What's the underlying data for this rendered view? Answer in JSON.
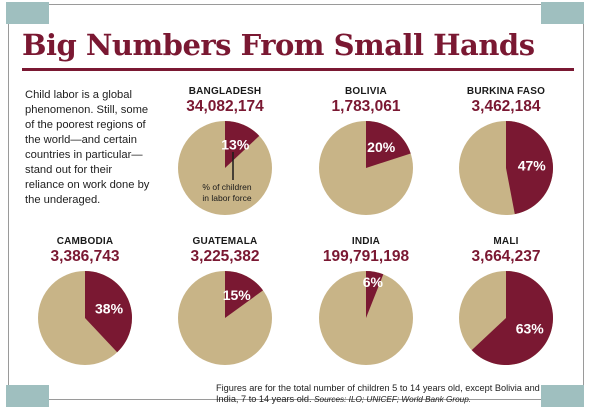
{
  "title": "Big Numbers From Small Hands",
  "intro": "Child labor is a global phenomenon. Still, some of the poorest regions of the world—and certain countries in particular—stand out for their reliance on work done by the underaged.",
  "footnote": {
    "text": "Figures are for the total number of children 5 to 14 years old, except Bolivia and India, 7 to 14 years old.",
    "sources": "Sources: ILO; UNICEF; World Bank Group."
  },
  "annotation": "% of children in labor force",
  "colors": {
    "accent": "#7a1832",
    "base": "#c8b487",
    "frame_corner": "#9fbfbf"
  },
  "chart_data": [
    {
      "type": "pie",
      "title": "BANGLADESH",
      "subtitle": "34,082,174",
      "values": [
        13,
        87
      ],
      "labels": [
        "13%",
        ""
      ]
    },
    {
      "type": "pie",
      "title": "BOLIVIA",
      "subtitle": "1,783,061",
      "values": [
        20,
        80
      ],
      "labels": [
        "20%",
        ""
      ]
    },
    {
      "type": "pie",
      "title": "BURKINA FASO",
      "subtitle": "3,462,184",
      "values": [
        47,
        53
      ],
      "labels": [
        "47%",
        ""
      ]
    },
    {
      "type": "pie",
      "title": "CAMBODIA",
      "subtitle": "3,386,743",
      "values": [
        38,
        62
      ],
      "labels": [
        "38%",
        ""
      ]
    },
    {
      "type": "pie",
      "title": "GUATEMALA",
      "subtitle": "3,225,382",
      "values": [
        15,
        85
      ],
      "labels": [
        "15%",
        ""
      ]
    },
    {
      "type": "pie",
      "title": "INDIA",
      "subtitle": "199,791,198",
      "values": [
        6,
        94
      ],
      "labels": [
        "6%",
        ""
      ]
    },
    {
      "type": "pie",
      "title": "MALI",
      "subtitle": "3,664,237",
      "values": [
        63,
        37
      ],
      "labels": [
        "63%",
        ""
      ]
    }
  ]
}
